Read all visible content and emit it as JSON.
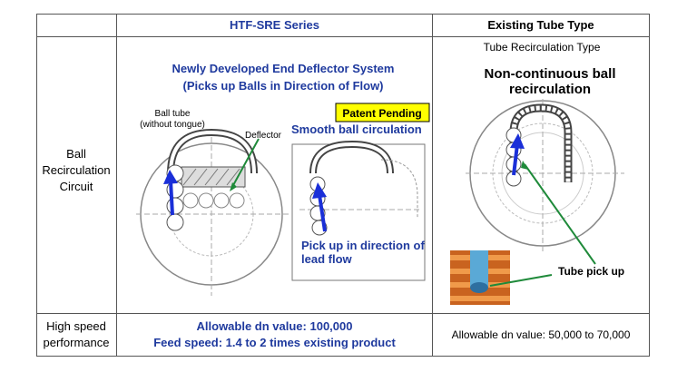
{
  "table": {
    "col_htf": "HTF-SRE Series",
    "col_existing": "Existing Tube Type",
    "row1_label_lines": [
      "Ball",
      "Recirculation",
      "Circuit"
    ],
    "row2_label_lines": [
      "High speed",
      "performance"
    ]
  },
  "htf_diagram": {
    "title_line1": "Newly Developed End Deflector System",
    "title_line2": "(Picks up Balls in Direction of Flow)",
    "ball_tube_label_line1": "Ball tube",
    "ball_tube_label_line2": "(without tongue)",
    "deflector_label": "Deflector",
    "patent_badge": "Patent Pending",
    "smooth_label": "Smooth ball circulation",
    "pickup_line1": "Pick up in direction of",
    "pickup_line2": "lead flow"
  },
  "existing_diagram": {
    "subtitle": "Tube Recirculation Type",
    "heading_line1": "Non-continuous ball",
    "heading_line2": "recirculation",
    "tube_pickup_label": "Tube pick up"
  },
  "performance": {
    "htf_line1": "Allowable dn value: 100,000",
    "htf_line2": "Feed speed: 1.4 to 2 times existing product",
    "existing": "Allowable dn value: 50,000 to 70,000"
  },
  "colors": {
    "accent_blue": "#1f3a9e",
    "arrow_blue": "#1a2fd8",
    "badge_yellow": "#ffff00",
    "arrow_green": "#1f8a3a"
  }
}
